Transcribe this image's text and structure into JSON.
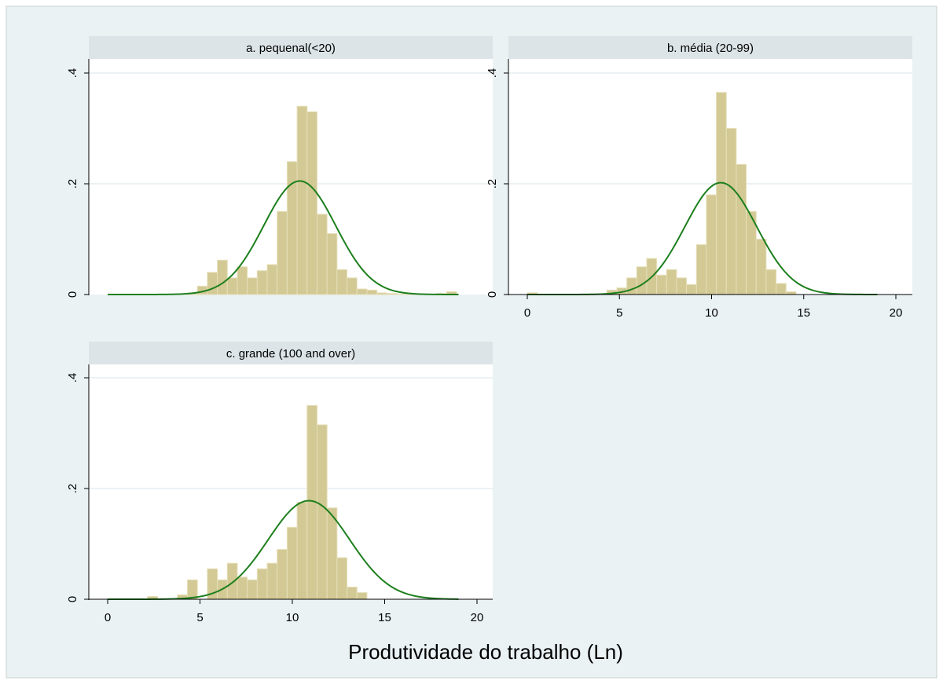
{
  "colors": {
    "outer_background": "#eaf2f3",
    "plot_background": "#ffffff",
    "strip_background": "#dce4e7",
    "bar_fill": "#d2c995",
    "bar_stroke": "#e6dfb8",
    "curve": "#1d7f1d",
    "gridline": "#e6eef0",
    "axis": "#000000"
  },
  "chart_data": {
    "type": "bar",
    "overlay": "normal density curve",
    "xlabel": "Produtividade do trabalho (Ln)",
    "ylabel": "",
    "xlim": [
      -1,
      21
    ],
    "ylim": [
      0,
      0.42
    ],
    "x_ticks": [
      0,
      5,
      10,
      15,
      20
    ],
    "x_tick_labels": [
      "0",
      "5",
      "10",
      "15",
      "20"
    ],
    "y_ticks": [
      0,
      0.2,
      0.4
    ],
    "y_tick_labels": [
      "0",
      ".2",
      ".4"
    ],
    "bin_start": 0,
    "bin_width": 0.54,
    "grid": true,
    "panels": [
      {
        "title": "a. pequenal(<20)",
        "show_x_axis": false,
        "density_values": [
          0,
          0,
          0,
          0,
          0,
          0,
          0,
          0,
          0.002,
          0.015,
          0.04,
          0.062,
          0.03,
          0.05,
          0.03,
          0.043,
          0.054,
          0.15,
          0.24,
          0.34,
          0.33,
          0.145,
          0.11,
          0.045,
          0.03,
          0.01,
          0.008,
          0.003,
          0.002,
          0.001,
          0.001,
          0.001,
          0,
          0.002,
          0.005
        ],
        "normal_mean": 10.4,
        "normal_sd": 1.95,
        "normal_peak": 0.205
      },
      {
        "title": "b. média (20-99)",
        "show_x_axis": true,
        "density_values": [
          0.003,
          0,
          0,
          0,
          0,
          0,
          0,
          0,
          0.008,
          0.012,
          0.03,
          0.05,
          0.065,
          0.035,
          0.045,
          0.03,
          0.018,
          0.09,
          0.18,
          0.365,
          0.3,
          0.235,
          0.15,
          0.1,
          0.045,
          0.02,
          0.005,
          0,
          0,
          0,
          0,
          0,
          0,
          0,
          0
        ],
        "normal_mean": 10.5,
        "normal_sd": 1.95,
        "normal_peak": 0.202
      },
      {
        "title": "c. grande (100 and over)",
        "show_x_axis": true,
        "density_values": [
          0,
          0,
          0,
          0,
          0.005,
          0,
          0,
          0.008,
          0.035,
          0,
          0.055,
          0.035,
          0.065,
          0.04,
          0.035,
          0.055,
          0.065,
          0.09,
          0.13,
          0.175,
          0.35,
          0.315,
          0.165,
          0.075,
          0.022,
          0.012,
          0,
          0,
          0,
          0,
          0,
          0,
          0,
          0,
          0
        ],
        "normal_mean": 10.9,
        "normal_sd": 2.2,
        "normal_peak": 0.178
      }
    ]
  }
}
